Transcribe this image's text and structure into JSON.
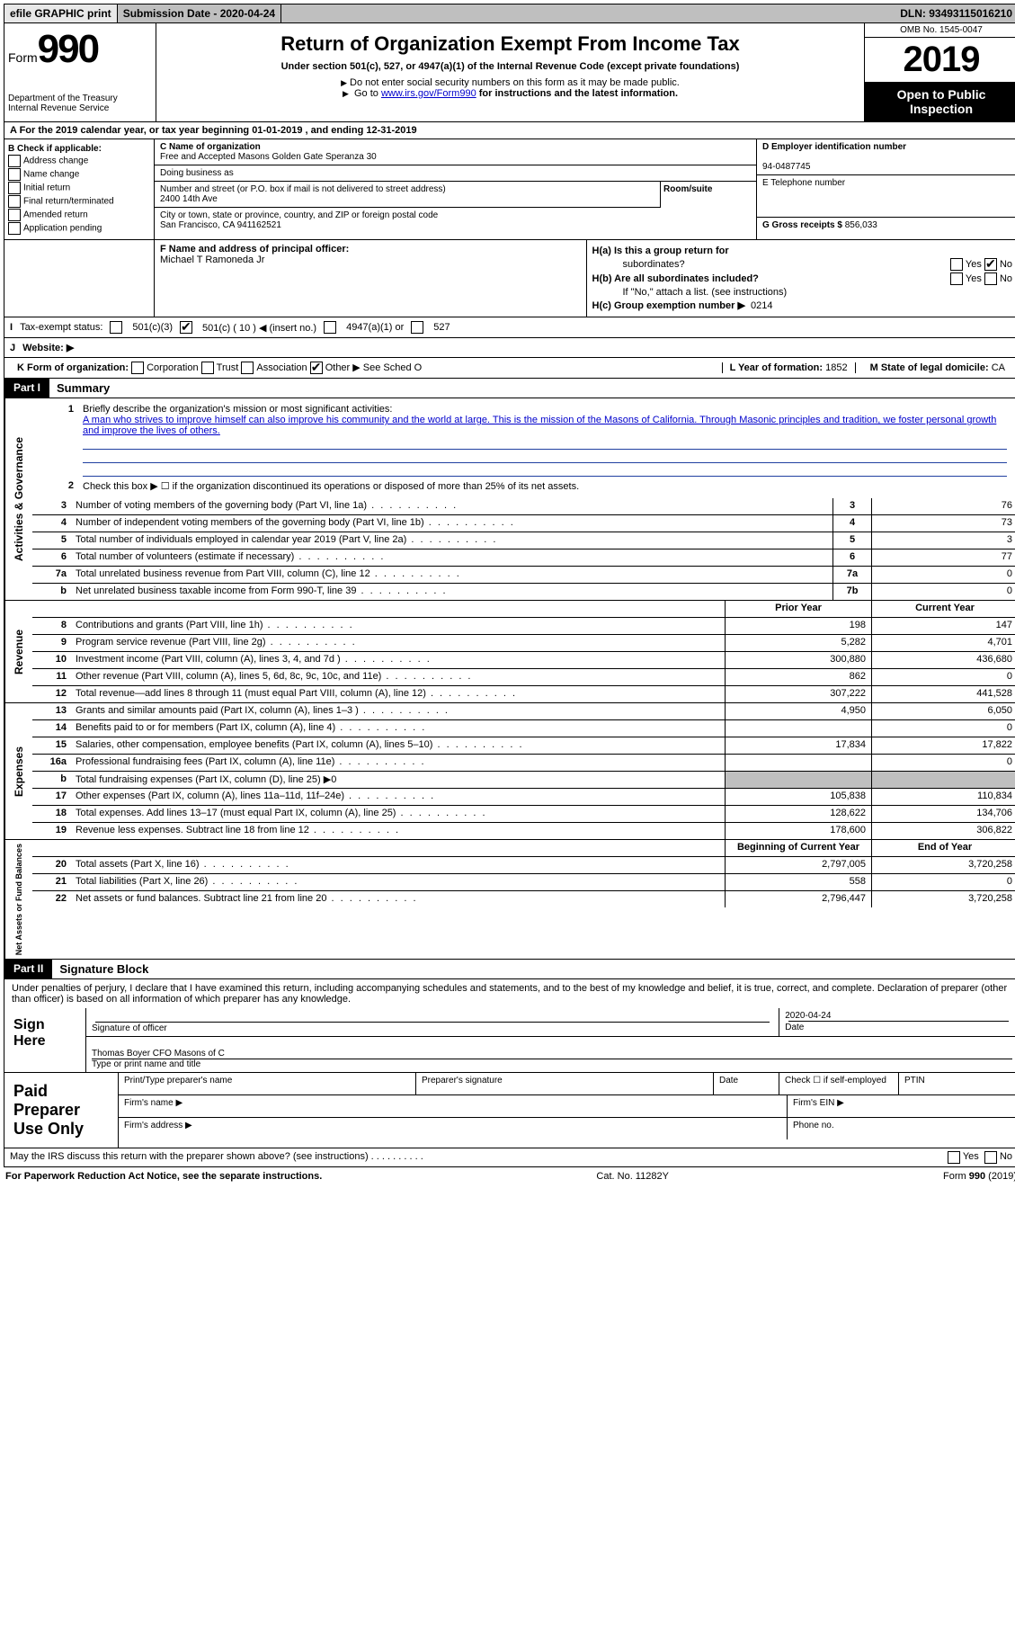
{
  "topbar": {
    "efile": "efile GRAPHIC print",
    "submission_label": "Submission Date - 2020-04-24",
    "dln": "DLN: 93493115016210"
  },
  "header": {
    "form_prefix": "Form",
    "form_number": "990",
    "dept1": "Department of the Treasury",
    "dept2": "Internal Revenue Service",
    "title": "Return of Organization Exempt From Income Tax",
    "subtitle": "Under section 501(c), 527, or 4947(a)(1) of the Internal Revenue Code (except private foundations)",
    "note1": "Do not enter social security numbers on this form as it may be made public.",
    "note2_pre": "Go to ",
    "note2_link": "www.irs.gov/Form990",
    "note2_post": " for instructions and the latest information.",
    "omb": "OMB No. 1545-0047",
    "year": "2019",
    "open1": "Open to Public",
    "open2": "Inspection"
  },
  "period": "A  For the 2019 calendar year, or tax year beginning 01-01-2019   , and ending 12-31-2019",
  "section_b": {
    "label": "B Check if applicable:",
    "addr_change": "Address change",
    "name_change": "Name change",
    "initial": "Initial return",
    "final": "Final return/terminated",
    "amended": "Amended return",
    "app_pending": "Application pending"
  },
  "section_c": {
    "name_lbl": "C Name of organization",
    "name": "Free and Accepted Masons Golden Gate Speranza 30",
    "dba_lbl": "Doing business as",
    "street_lbl": "Number and street (or P.O. box if mail is not delivered to street address)",
    "suite_lbl": "Room/suite",
    "street": "2400 14th Ave",
    "city_lbl": "City or town, state or province, country, and ZIP or foreign postal code",
    "city": "San Francisco, CA  941162521"
  },
  "section_d": {
    "lbl": "D Employer identification number",
    "ein": "94-0487745"
  },
  "section_e": {
    "lbl": "E Telephone number"
  },
  "section_g": {
    "lbl": "G Gross receipts $",
    "val": "856,033"
  },
  "section_f": {
    "lbl": "F  Name and address of principal officer:",
    "name": "Michael T Ramoneda Jr"
  },
  "section_h": {
    "ha": "H(a)  Is this a group return for",
    "ha2": "subordinates?",
    "hb": "H(b)  Are all subordinates included?",
    "hb_note": "If \"No,\" attach a list. (see instructions)",
    "hc": "H(c)  Group exemption number ▶",
    "hc_val": "0214",
    "yes": "Yes",
    "no": "No"
  },
  "tax_status": {
    "i": "I",
    "lbl": "Tax-exempt status:",
    "c3": "501(c)(3)",
    "c": "501(c) ( 10 ) ◀ (insert no.)",
    "a4947": "4947(a)(1) or",
    "s527": "527"
  },
  "website": {
    "j": "J",
    "lbl": "Website: ▶"
  },
  "k_row": {
    "k": "K Form of organization:",
    "corp": "Corporation",
    "trust": "Trust",
    "assoc": "Association",
    "other": "Other ▶",
    "other_val": "See Sched O",
    "l": "L Year of formation:",
    "l_val": "1852",
    "m": "M State of legal domicile:",
    "m_val": "CA"
  },
  "part1": {
    "hdr": "Part I",
    "title": "Summary",
    "q1": "Briefly describe the organization's mission or most significant activities:",
    "mission": "A man who strives to improve himself can also improve his community and the world at large. This is the mission of the Masons of California. Through Masonic principles and tradition, we foster personal growth and improve the lives of others.",
    "q2": "Check this box ▶ ☐  if the organization discontinued its operations or disposed of more than 25% of its net assets.",
    "side_ag": "Activities & Governance",
    "side_rev": "Revenue",
    "side_exp": "Expenses",
    "side_na": "Net Assets or Fund Balances",
    "lines_ag": [
      {
        "n": "3",
        "d": "Number of voting members of the governing body (Part VI, line 1a)",
        "box": "3",
        "v": "76"
      },
      {
        "n": "4",
        "d": "Number of independent voting members of the governing body (Part VI, line 1b)",
        "box": "4",
        "v": "73"
      },
      {
        "n": "5",
        "d": "Total number of individuals employed in calendar year 2019 (Part V, line 2a)",
        "box": "5",
        "v": "3"
      },
      {
        "n": "6",
        "d": "Total number of volunteers (estimate if necessary)",
        "box": "6",
        "v": "77"
      },
      {
        "n": "7a",
        "d": "Total unrelated business revenue from Part VIII, column (C), line 12",
        "box": "7a",
        "v": "0"
      },
      {
        "n": "b",
        "d": "Net unrelated business taxable income from Form 990-T, line 39",
        "box": "7b",
        "v": "0"
      }
    ],
    "col_prior": "Prior Year",
    "col_current": "Current Year",
    "lines_rev": [
      {
        "n": "8",
        "d": "Contributions and grants (Part VIII, line 1h)",
        "p": "198",
        "c": "147"
      },
      {
        "n": "9",
        "d": "Program service revenue (Part VIII, line 2g)",
        "p": "5,282",
        "c": "4,701"
      },
      {
        "n": "10",
        "d": "Investment income (Part VIII, column (A), lines 3, 4, and 7d )",
        "p": "300,880",
        "c": "436,680"
      },
      {
        "n": "11",
        "d": "Other revenue (Part VIII, column (A), lines 5, 6d, 8c, 9c, 10c, and 11e)",
        "p": "862",
        "c": "0"
      },
      {
        "n": "12",
        "d": "Total revenue—add lines 8 through 11 (must equal Part VIII, column (A), line 12)",
        "p": "307,222",
        "c": "441,528"
      }
    ],
    "lines_exp": [
      {
        "n": "13",
        "d": "Grants and similar amounts paid (Part IX, column (A), lines 1–3 )",
        "p": "4,950",
        "c": "6,050"
      },
      {
        "n": "14",
        "d": "Benefits paid to or for members (Part IX, column (A), line 4)",
        "p": "",
        "c": "0"
      },
      {
        "n": "15",
        "d": "Salaries, other compensation, employee benefits (Part IX, column (A), lines 5–10)",
        "p": "17,834",
        "c": "17,822"
      },
      {
        "n": "16a",
        "d": "Professional fundraising fees (Part IX, column (A), line 11e)",
        "p": "",
        "c": "0"
      },
      {
        "n": "b",
        "d": "Total fundraising expenses (Part IX, column (D), line 25) ▶0",
        "gray": true
      },
      {
        "n": "17",
        "d": "Other expenses (Part IX, column (A), lines 11a–11d, 11f–24e)",
        "p": "105,838",
        "c": "110,834"
      },
      {
        "n": "18",
        "d": "Total expenses. Add lines 13–17 (must equal Part IX, column (A), line 25)",
        "p": "128,622",
        "c": "134,706"
      },
      {
        "n": "19",
        "d": "Revenue less expenses. Subtract line 18 from line 12",
        "p": "178,600",
        "c": "306,822"
      }
    ],
    "col_boy": "Beginning of Current Year",
    "col_eoy": "End of Year",
    "lines_na": [
      {
        "n": "20",
        "d": "Total assets (Part X, line 16)",
        "p": "2,797,005",
        "c": "3,720,258"
      },
      {
        "n": "21",
        "d": "Total liabilities (Part X, line 26)",
        "p": "558",
        "c": "0"
      },
      {
        "n": "22",
        "d": "Net assets or fund balances. Subtract line 21 from line 20",
        "p": "2,796,447",
        "c": "3,720,258"
      }
    ]
  },
  "part2": {
    "hdr": "Part II",
    "title": "Signature Block",
    "declare": "Under penalties of perjury, I declare that I have examined this return, including accompanying schedules and statements, and to the best of my knowledge and belief, it is true, correct, and complete. Declaration of preparer (other than officer) is based on all information of which preparer has any knowledge.",
    "sign_here": "Sign Here",
    "sig_officer": "Signature of officer",
    "date": "Date",
    "date_val": "2020-04-24",
    "typed_name": "Thomas Boyer  CFO Masons of C",
    "typed_lbl": "Type or print name and title",
    "paid_prep": "Paid Preparer Use Only",
    "pt_name": "Print/Type preparer's name",
    "pt_sig": "Preparer's signature",
    "pt_date": "Date",
    "pt_check": "Check ☐ if self-employed",
    "ptin": "PTIN",
    "firm_name": "Firm's name    ▶",
    "firm_ein": "Firm's EIN ▶",
    "firm_addr": "Firm's address ▶",
    "phone": "Phone no."
  },
  "may_discuss": "May the IRS discuss this return with the preparer shown above? (see instructions)   .   .   .   .   .   .   .   .   .   .",
  "footer": {
    "left": "For Paperwork Reduction Act Notice, see the separate instructions.",
    "mid": "Cat. No. 11282Y",
    "right": "Form 990 (2019)"
  }
}
